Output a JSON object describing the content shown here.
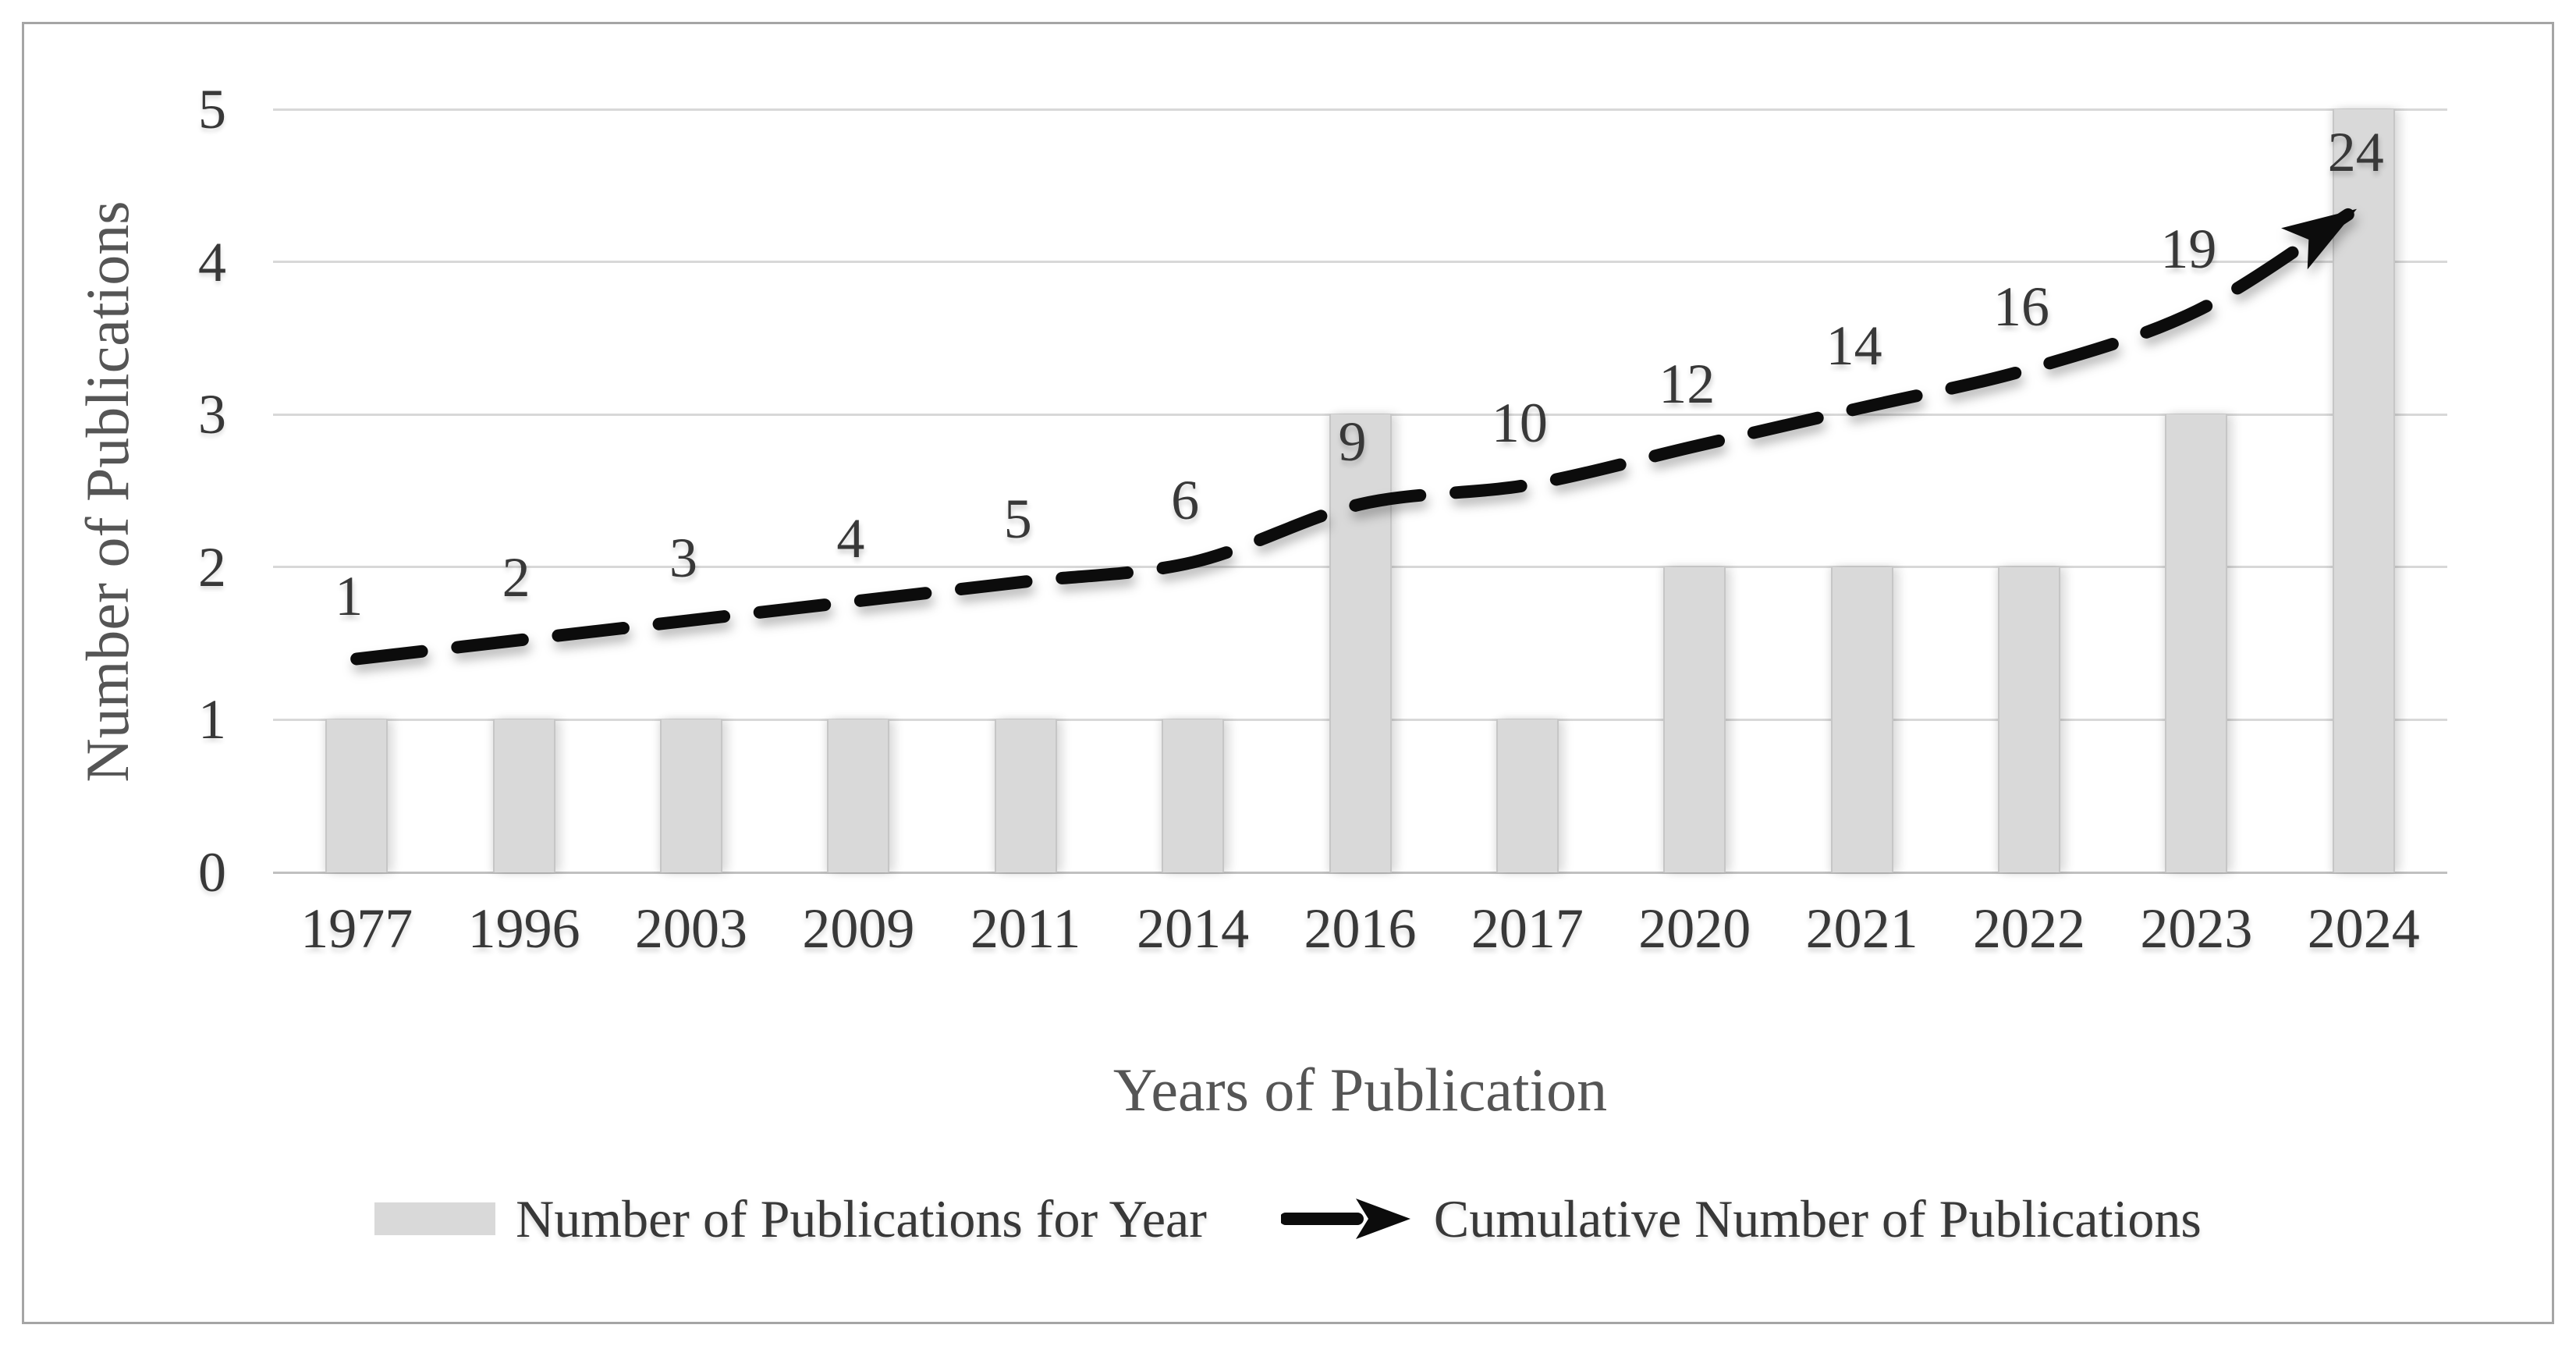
{
  "chart_data": {
    "type": "combo-bar-line",
    "categories": [
      "1977",
      "1996",
      "2003",
      "2009",
      "2011",
      "2014",
      "2016",
      "2017",
      "2020",
      "2021",
      "2022",
      "2023",
      "2024"
    ],
    "series": [
      {
        "name": "Number of Publications for Year",
        "type": "bar",
        "values": [
          1,
          1,
          1,
          1,
          1,
          1,
          3,
          1,
          2,
          2,
          2,
          3,
          5
        ]
      },
      {
        "name": "Cumulative Number of Publications",
        "type": "line",
        "style": "dashed-smooth",
        "end_marker": "arrow",
        "labels_shown": true,
        "values": [
          1,
          2,
          3,
          4,
          5,
          6,
          9,
          10,
          12,
          14,
          16,
          19,
          24
        ]
      }
    ],
    "xlabel": "Years of Publication",
    "ylabel": "Number of Publications",
    "y_ticks": [
      "0",
      "1",
      "2",
      "3",
      "4",
      "5"
    ],
    "ylim": [
      0,
      5
    ],
    "grid": "horizontal",
    "legend_position": "bottom",
    "colors": {
      "background": "#ffffff",
      "frame_border": "#a5a5a5",
      "gridline": "#d8d8d8",
      "axis_line": "#c0c0c0",
      "bar_fill": "#d9d9d9",
      "bar_edge": "#c6c6c6",
      "line": "#0c0c0c",
      "tick_text": "#383838",
      "title_text": "#555555",
      "label_text": "#383838"
    }
  }
}
